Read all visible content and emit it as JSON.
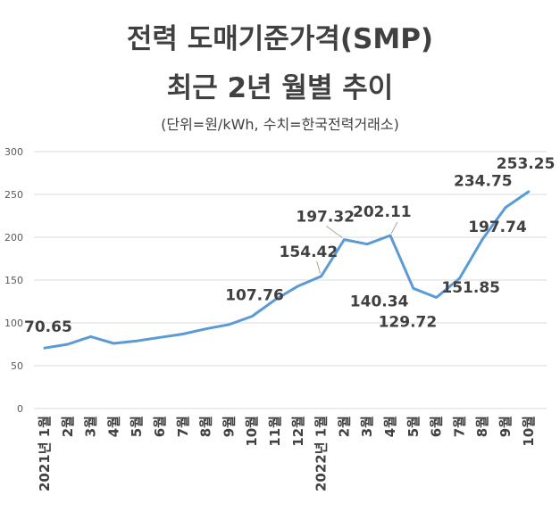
{
  "title_line1": "전력 도매기준가격(SMP)",
  "title_line2": "최근 2년 월별 추이",
  "subtitle": "(단위=원/kWh, 수치=한국전력거래소)",
  "chart_data": {
    "type": "line",
    "title": "전력 도매기준가격(SMP) 최근 2년 월별 추이",
    "subtitle": "(단위=원/kWh, 수치=한국전력거래소)",
    "categories": [
      "2021년 1월",
      "2월",
      "3월",
      "4월",
      "5월",
      "6월",
      "7월",
      "8월",
      "9월",
      "10월",
      "11월",
      "12월",
      "2022년 1월",
      "2월",
      "3월",
      "4월",
      "5월",
      "6월",
      "7월",
      "8월",
      "9월",
      "10월"
    ],
    "values": [
      70.65,
      75,
      84,
      76,
      79,
      83,
      87,
      93,
      98,
      107.76,
      127,
      143,
      154.42,
      197.32,
      192,
      202.11,
      140.34,
      129.72,
      151.85,
      197.74,
      234.75,
      253.25
    ],
    "ylim": [
      0,
      300
    ],
    "yticks": [
      0,
      50,
      100,
      150,
      200,
      250,
      300
    ],
    "grid": true,
    "line_color": "#5B9BD5",
    "data_labels": [
      {
        "index": 0,
        "text": "70.65"
      },
      {
        "index": 9,
        "text": "107.76"
      },
      {
        "index": 12,
        "text": "154.42"
      },
      {
        "index": 13,
        "text": "197.32"
      },
      {
        "index": 15,
        "text": "202.11"
      },
      {
        "index": 16,
        "text": "140.34"
      },
      {
        "index": 17,
        "text": "129.72"
      },
      {
        "index": 18,
        "text": "151.85"
      },
      {
        "index": 19,
        "text": "197.74"
      },
      {
        "index": 20,
        "text": "234.75"
      },
      {
        "index": 21,
        "text": "253.25"
      }
    ]
  }
}
